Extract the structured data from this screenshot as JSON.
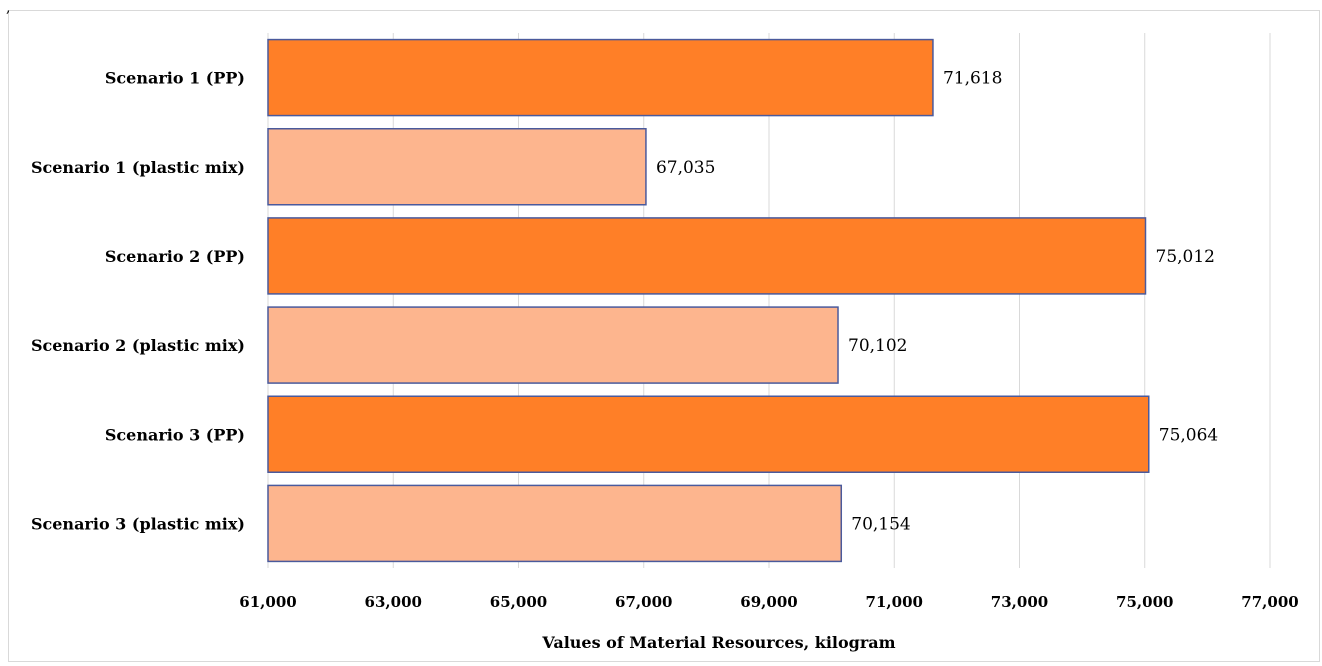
{
  "chart_data": {
    "type": "bar",
    "orientation": "horizontal",
    "categories": [
      "Scenario 1 (PP)",
      "Scenario 1 (plastic mix)",
      "Scenario 2 (PP)",
      "Scenario 2 (plastic mix)",
      "Scenario 3 (PP)",
      "Scenario 3 (plastic mix)"
    ],
    "values": [
      71618,
      67035,
      75012,
      70102,
      75064,
      70154
    ],
    "data_labels": [
      "71,618",
      "67,035",
      "75,012",
      "70,102",
      "75,064",
      "70,154"
    ],
    "bar_colors": [
      "#FF7F27",
      "#FDB58E",
      "#FF7F27",
      "#FDB58E",
      "#FF7F27",
      "#FDB58E"
    ],
    "bar_outline": "#4A5A9C",
    "xlabel": "Values of Material Resources, kilogram",
    "ylabel": "",
    "xlim": [
      61000,
      77000
    ],
    "xticks": [
      61000,
      63000,
      65000,
      67000,
      69000,
      71000,
      73000,
      75000,
      77000
    ],
    "xtick_labels": [
      "61,000",
      "63,000",
      "65,000",
      "67,000",
      "69,000",
      "71,000",
      "73,000",
      "75,000",
      "77,000"
    ],
    "grid": "vertical"
  },
  "corner_mark": ","
}
